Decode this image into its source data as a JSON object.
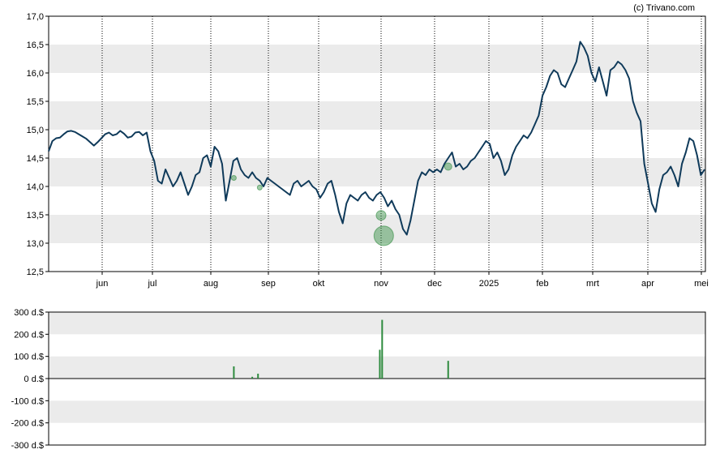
{
  "copyright": "(c) Trivano.com",
  "colors": {
    "price_line": "#0f3a5a",
    "band": "#ebebeb",
    "volume_bar": "#2e8b3e",
    "bubble": "#2e8b3e"
  },
  "chart_data": [
    {
      "type": "line",
      "ylim": [
        12.5,
        17.0
      ],
      "y_ticks": [
        "17,0",
        "16,5",
        "16,0",
        "15,5",
        "15,0",
        "14,5",
        "14,0",
        "13,5",
        "13,0",
        "12,5"
      ],
      "x_ticks": [
        "jun",
        "jul",
        "aug",
        "sep",
        "okt",
        "nov",
        "dec",
        "2025",
        "feb",
        "mrt",
        "apr",
        "mei"
      ],
      "grid": "vertical dotted lines at month ticks, alternating horizontal bands",
      "series": [
        {
          "values": [
            14.62,
            14.8,
            14.85,
            14.86,
            14.92,
            14.97,
            14.98,
            14.96,
            14.92,
            14.88,
            14.84,
            14.78,
            14.72,
            14.78,
            14.85,
            14.92,
            14.95,
            14.9,
            14.92,
            14.98,
            14.93,
            14.86,
            14.88,
            14.95,
            14.96,
            14.9,
            14.95,
            14.62,
            14.45,
            14.1,
            14.05,
            14.3,
            14.15,
            14.0,
            14.1,
            14.25,
            14.05,
            13.85,
            14.0,
            14.2,
            14.25,
            14.5,
            14.55,
            14.35,
            14.7,
            14.62,
            14.4,
            13.75,
            14.1,
            14.45,
            14.5,
            14.3,
            14.2,
            14.15,
            14.25,
            14.15,
            14.1,
            14.0,
            14.15,
            14.1,
            14.05,
            14.0,
            13.95,
            13.9,
            13.85,
            14.05,
            14.1,
            14.0,
            14.05,
            14.1,
            14.0,
            13.95,
            13.8,
            13.9,
            14.05,
            14.1,
            13.85,
            13.55,
            13.35,
            13.7,
            13.85,
            13.8,
            13.75,
            13.85,
            13.9,
            13.8,
            13.75,
            13.85,
            13.9,
            13.8,
            13.65,
            13.75,
            13.6,
            13.5,
            13.25,
            13.15,
            13.4,
            13.75,
            14.1,
            14.25,
            14.2,
            14.3,
            14.25,
            14.3,
            14.25,
            14.4,
            14.5,
            14.6,
            14.35,
            14.4,
            14.3,
            14.35,
            14.45,
            14.5,
            14.6,
            14.7,
            14.8,
            14.75,
            14.5,
            14.6,
            14.45,
            14.2,
            14.3,
            14.55,
            14.7,
            14.8,
            14.9,
            14.85,
            14.95,
            15.1,
            15.25,
            15.6,
            15.75,
            15.95,
            16.05,
            16.0,
            15.8,
            15.75,
            15.9,
            16.05,
            16.2,
            16.55,
            16.45,
            16.3,
            16.0,
            15.85,
            16.1,
            15.85,
            15.6,
            16.05,
            16.1,
            16.2,
            16.15,
            16.05,
            15.9,
            15.5,
            15.3,
            15.15,
            14.4,
            14.05,
            13.7,
            13.55,
            13.95,
            14.2,
            14.25,
            14.35,
            14.2,
            14.0,
            14.4,
            14.6,
            14.85,
            14.8,
            14.55,
            14.2,
            14.3
          ]
        }
      ],
      "markers": [
        {
          "month_pos": 2.4,
          "value": 14.15,
          "size": 1
        },
        {
          "month_pos": 2.85,
          "value": 13.98,
          "size": 1
        },
        {
          "month_pos": 5.0,
          "value": 13.49,
          "size": 2
        },
        {
          "month_pos": 5.05,
          "value": 13.13,
          "size": 4
        },
        {
          "month_pos": 6.25,
          "value": 14.35,
          "size": 1.5
        }
      ]
    },
    {
      "type": "bar",
      "ylim": [
        -300,
        300
      ],
      "y_ticks": [
        "300 d.$",
        "200 d.$",
        "100 d.$",
        "0 d.$",
        "-100 d.$",
        "-200 d.$",
        "-300 d.$"
      ],
      "bars": [
        {
          "month_pos": 2.4,
          "value": 55
        },
        {
          "month_pos": 2.72,
          "value": 8
        },
        {
          "month_pos": 2.82,
          "value": 22
        },
        {
          "month_pos": 4.98,
          "value": 130
        },
        {
          "month_pos": 5.02,
          "value": 265
        },
        {
          "month_pos": 6.25,
          "value": 80
        }
      ]
    }
  ]
}
